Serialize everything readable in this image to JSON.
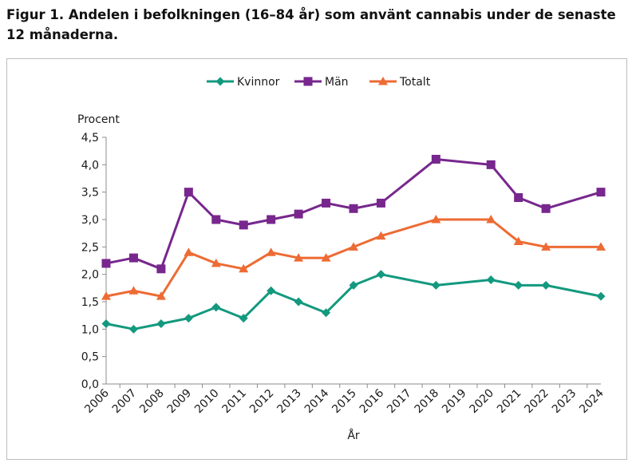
{
  "figure": {
    "title": "Figur 1. Andelen i befolkningen (16–84 år) som använt cannabis under de senaste 12 månaderna."
  },
  "chart_data": {
    "type": "line",
    "ylabel": "Procent",
    "xlabel": "År",
    "ylim": [
      0,
      4.5
    ],
    "yticks": [
      0,
      0.5,
      1,
      1.5,
      2,
      2.5,
      3,
      3.5,
      4,
      4.5
    ],
    "ytick_labels": [
      "0,0",
      "0,5",
      "1,0",
      "1,5",
      "2,0",
      "2,5",
      "3,0",
      "3,5",
      "4,0",
      "4,5"
    ],
    "categories": [
      "2006",
      "2007",
      "2008",
      "2009",
      "2010",
      "2011",
      "2012",
      "2013",
      "2014",
      "2015",
      "2016",
      "2017",
      "2018",
      "2019",
      "2020",
      "2021",
      "2022",
      "2023",
      "2024"
    ],
    "grid": false,
    "legend_position": "top-center",
    "series": [
      {
        "name": "Kvinnor",
        "color": "#13997f",
        "marker": "diamond",
        "values": [
          1.1,
          1.0,
          1.1,
          1.2,
          1.4,
          1.2,
          1.7,
          1.5,
          1.3,
          1.8,
          2.0,
          null,
          1.8,
          null,
          1.9,
          1.8,
          1.8,
          null,
          1.6
        ]
      },
      {
        "name": "Män",
        "color": "#77278d",
        "marker": "square",
        "values": [
          2.2,
          2.3,
          2.1,
          3.5,
          3.0,
          2.9,
          3.0,
          3.1,
          3.3,
          3.2,
          3.3,
          null,
          4.1,
          null,
          4.0,
          3.4,
          3.2,
          null,
          3.5
        ]
      },
      {
        "name": "Totalt",
        "color": "#ed6b34",
        "marker": "triangle",
        "values": [
          1.6,
          1.7,
          1.6,
          2.4,
          2.2,
          2.1,
          2.4,
          2.3,
          2.3,
          2.5,
          2.7,
          null,
          3.0,
          null,
          3.0,
          2.6,
          2.5,
          null,
          2.5
        ]
      }
    ]
  }
}
